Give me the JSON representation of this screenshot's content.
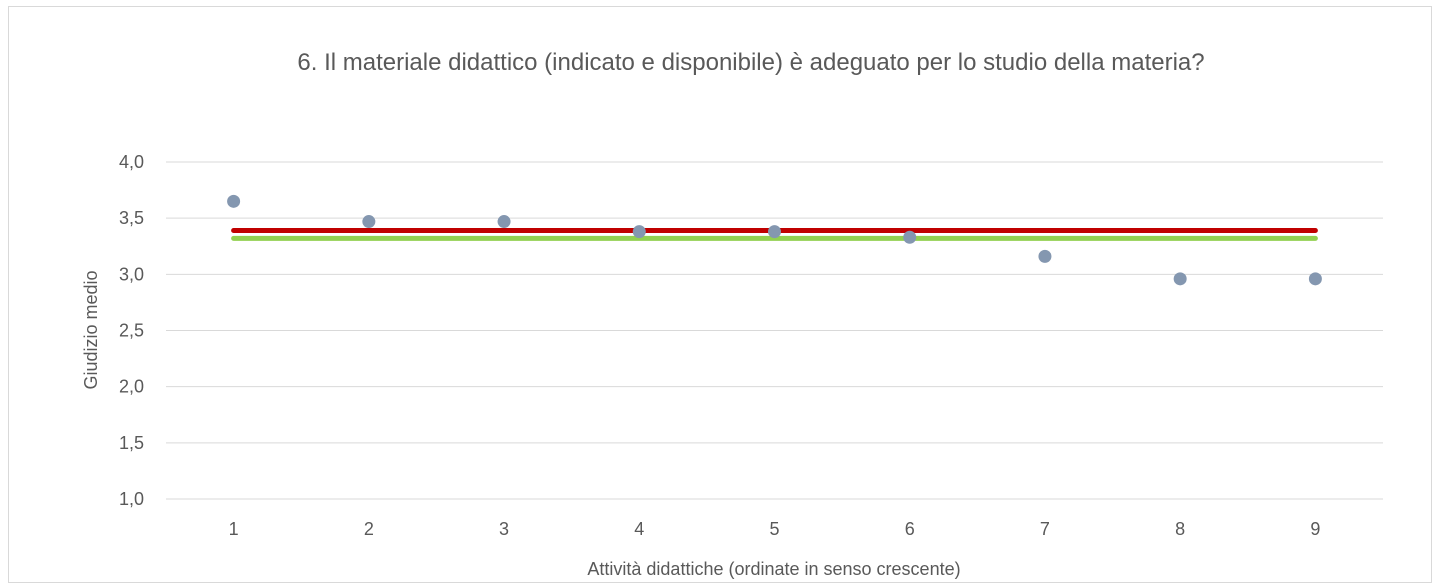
{
  "chart_data": {
    "type": "scatter",
    "title": "6. Il materiale didattico (indicato e disponibile) è adeguato per lo studio della materia?",
    "xlabel": "Attività didattiche (ordinate in senso crescente)",
    "ylabel": "Giudizio medio",
    "x": [
      1,
      2,
      3,
      4,
      5,
      6,
      7,
      8,
      9
    ],
    "x_tick_labels": [
      "1",
      "2",
      "3",
      "4",
      "5",
      "6",
      "7",
      "8",
      "9"
    ],
    "y_tick_labels": [
      "4,0",
      "3,5",
      "3,0",
      "2,5",
      "2,0",
      "1,5",
      "1,0"
    ],
    "y_ticks": [
      4.0,
      3.5,
      3.0,
      2.5,
      2.0,
      1.5,
      1.0
    ],
    "ylim": [
      1.0,
      4.0
    ],
    "xlim": [
      0.5,
      9.5
    ],
    "grid": true,
    "legend": "none",
    "series": [
      {
        "type": "scatter",
        "values": [
          3.65,
          3.47,
          3.47,
          3.38,
          3.38,
          3.33,
          3.16,
          2.96,
          2.96
        ],
        "color": "#8497b0"
      },
      {
        "type": "line",
        "values": [
          3.39,
          3.39,
          3.39,
          3.39,
          3.39,
          3.39,
          3.39,
          3.39,
          3.39
        ],
        "color": "#c00000"
      },
      {
        "type": "line",
        "values": [
          3.32,
          3.32,
          3.32,
          3.32,
          3.32,
          3.32,
          3.32,
          3.32,
          3.32
        ],
        "color": "#92d050"
      }
    ],
    "colors": {
      "grid": "#d9d9d9",
      "text": "#595959"
    }
  }
}
